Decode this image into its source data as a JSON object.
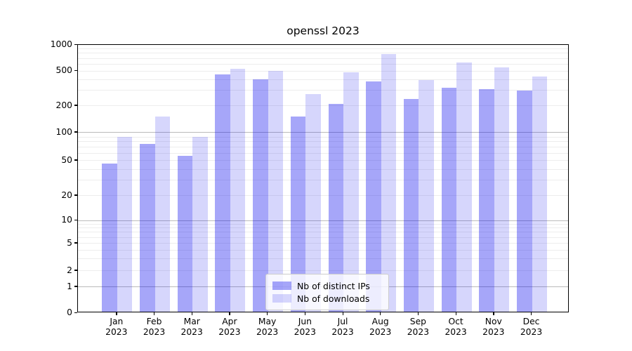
{
  "figure": {
    "background": "#FFFFFF"
  },
  "chart_data": {
    "type": "bar",
    "title": "openssl 2023",
    "categories": [
      "Jan",
      "Feb",
      "Mar",
      "Apr",
      "May",
      "Jun",
      "Jul",
      "Aug",
      "Sep",
      "Oct",
      "Nov",
      "Dec"
    ],
    "category_year": "2023",
    "series": [
      {
        "name": "Nb of distinct IPs",
        "color": "#0000EE59",
        "values": [
          45,
          73,
          55,
          440,
          385,
          146,
          202,
          368,
          232,
          310,
          297,
          289
        ]
      },
      {
        "name": "Nb of downloads",
        "color": "#0000EE29",
        "values": [
          87,
          148,
          87,
          510,
          485,
          263,
          465,
          760,
          378,
          600,
          530,
          420
        ]
      }
    ],
    "xlabel": "",
    "ylabel": "",
    "ylim": [
      0,
      1000
    ],
    "y_scale": "log-like with 0 baseline",
    "y_ticks": [
      1000,
      500,
      200,
      100,
      50,
      20,
      10,
      5,
      2,
      1,
      0
    ],
    "grid": {
      "on": true,
      "major_values": [
        1,
        10,
        100
      ],
      "minor_values": [
        2,
        3,
        4,
        5,
        6,
        7,
        8,
        9,
        20,
        30,
        40,
        50,
        60,
        70,
        80,
        90,
        200,
        300,
        400,
        500,
        600,
        700,
        800,
        900
      ],
      "major_color": "#BBBBBB",
      "minor_color": "#EDEDED"
    },
    "scale_anchors": [
      [
        0,
        1.0
      ],
      [
        1,
        0.9031
      ],
      [
        2,
        0.8429
      ],
      [
        5,
        0.7408
      ],
      [
        10,
        0.6545
      ],
      [
        20,
        0.5628
      ],
      [
        50,
        0.4319
      ],
      [
        100,
        0.3272
      ],
      [
        200,
        0.2277
      ],
      [
        500,
        0.0969
      ],
      [
        1000,
        0.0
      ]
    ],
    "legend_position": "lower center"
  }
}
